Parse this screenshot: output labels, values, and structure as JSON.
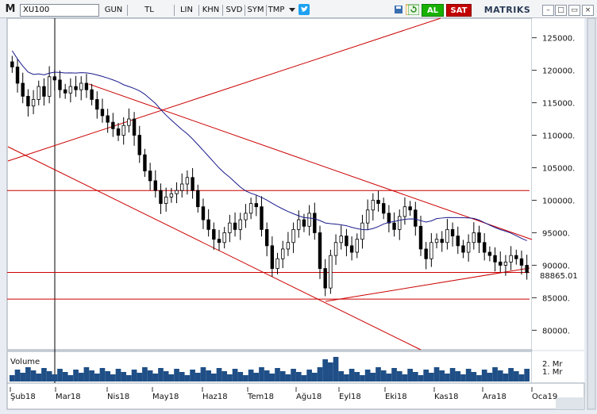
{
  "toolbar": {
    "logo": "M",
    "symbol": "XU100",
    "period": "GUN",
    "currency": "TL",
    "scale": "LIN",
    "b1": "KHN",
    "b2": "SVD",
    "b3": "SYM",
    "b4": "TMP",
    "al": "AL",
    "sat": "SAT",
    "brand": "MATRIKS"
  },
  "colors": {
    "candle": "#000000",
    "trend": "#cc0000",
    "ma": "#1a1a8c",
    "volume": "#1f4f86",
    "background": "#ffffff"
  },
  "chart_data": {
    "type": "candlestick",
    "symbol": "XU100",
    "last_price_label": "88865.01",
    "y_ticks": [
      "125000.",
      "120000.",
      "115000.",
      "110000.",
      "105000.",
      "100000.",
      "95000.",
      "90000.",
      "85000.",
      "80000."
    ],
    "y_tick_values": [
      125000,
      120000,
      115000,
      110000,
      105000,
      100000,
      95000,
      90000,
      85000,
      80000
    ],
    "x_ticks": [
      "Şub18",
      "Mar18",
      "Nis18",
      "May18",
      "Haz18",
      "Tem18",
      "Ağu18",
      "Eyl18",
      "Eki18",
      "Kas18",
      "Ara18",
      "Oca19"
    ],
    "volume_label": "Volume",
    "volume_ticks": [
      "2. Mr",
      "1. Mr"
    ],
    "horizontal_levels": [
      101500,
      88900,
      84800
    ],
    "ylim": [
      77000,
      128000
    ],
    "close_approx": [
      120500,
      118000,
      116000,
      114500,
      115500,
      117500,
      116000,
      119000,
      118500,
      117000,
      116500,
      117500,
      117000,
      118000,
      117000,
      115500,
      114000,
      113000,
      112000,
      111000,
      110000,
      111500,
      112500,
      110000,
      107000,
      104500,
      103000,
      101500,
      99500,
      100500,
      101000,
      101500,
      102500,
      103500,
      101500,
      99000,
      97000,
      95500,
      94000,
      93500,
      95000,
      96500,
      95500,
      97000,
      98000,
      99500,
      99000,
      95500,
      93000,
      89500,
      91000,
      92500,
      93500,
      95500,
      97000,
      96000,
      98000,
      95000,
      89500,
      86500,
      91500,
      93500,
      94500,
      93000,
      92000,
      94000,
      96500,
      98500,
      100000,
      99500,
      98000,
      96500,
      95500,
      97500,
      99000,
      98500,
      96000,
      92500,
      91000,
      93500,
      94000,
      93500,
      95500,
      94500,
      93000,
      92000,
      93500,
      95000,
      93500,
      92000,
      91500,
      90500,
      90000,
      90500,
      91500,
      91000,
      90000,
      88865
    ]
  }
}
